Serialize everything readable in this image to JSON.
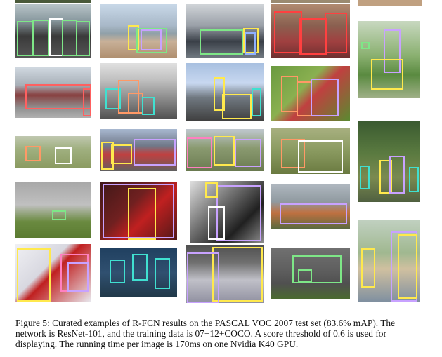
{
  "caption": {
    "lines": [
      "Figure 5: Curated examples of R-FCN results on the PASCAL VOC 2007 test set (83.6% mAP). The",
      "network is ResNet-101, and the training data is 07+12+COCO. A score threshold of 0.6 is used for",
      "displaying. The running time per image is 170ms on one Nvidia K40 GPU."
    ]
  },
  "photos": [
    {
      "id": "motorbikes-parade",
      "boxes": [
        "#7ee787",
        "#7ee787",
        "#ffffff",
        "#7ee787",
        "#7ee787"
      ]
    },
    {
      "id": "beach-motorbike",
      "boxes": [
        "#ffe94d",
        "#7ee787",
        "#c8a2ff"
      ]
    },
    {
      "id": "parking-car",
      "boxes": [
        "#7ee787",
        "#ffe94d",
        "#8fb0ff"
      ]
    },
    {
      "id": "red-chairs",
      "boxes": [
        "#ff4040",
        "#ff4040",
        "#ff4040"
      ]
    },
    {
      "id": "woman-dog",
      "boxes": [
        "#c8a2ff",
        "#7ee787",
        "#ffe94d"
      ]
    },
    {
      "id": "red-bus",
      "boxes": [
        "#ff6060",
        "#ff6060"
      ]
    },
    {
      "id": "potted-plants",
      "boxes": [
        "#40e0d0",
        "#ff9966",
        "#ff9966",
        "#40e0d0"
      ]
    },
    {
      "id": "people-harbor",
      "boxes": [
        "#ffe94d",
        "#ffe94d",
        "#40e0d0"
      ]
    },
    {
      "id": "kayak",
      "boxes": [
        "#ff9966",
        "#ff9966",
        "#c8a2ff"
      ]
    },
    {
      "id": "sheep-field",
      "boxes": [
        "#ff9966",
        "#ffffff"
      ]
    },
    {
      "id": "trains",
      "boxes": [
        "#ffe94d",
        "#ffe94d",
        "#c8a2ff"
      ]
    },
    {
      "id": "horse-riders",
      "boxes": [
        "#ff80c0",
        "#ffe94d",
        "#c8a2ff"
      ]
    },
    {
      "id": "dogs-grass",
      "boxes": [
        "#ff9966",
        "#ffffff"
      ]
    },
    {
      "id": "people-forest",
      "boxes": [
        "#40e0d0",
        "#ffe94d",
        "#c8a2ff"
      ]
    },
    {
      "id": "boat-field",
      "boxes": [
        "#7ee787"
      ]
    },
    {
      "id": "girl-chair",
      "boxes": [
        "#ffe94d",
        "#c8a2ff"
      ]
    },
    {
      "id": "bicycle-bw",
      "boxes": [
        "#c8a2ff",
        "#ffe94d",
        "#ffffff"
      ]
    },
    {
      "id": "train-sunset",
      "boxes": [
        "#c8a2ff"
      ]
    },
    {
      "id": "boy-snow-dog",
      "boxes": [
        "#ffe94d",
        "#ff80c0",
        "#c8a2ff"
      ]
    },
    {
      "id": "bottles",
      "boxes": [
        "#40e0d0",
        "#40e0d0"
      ]
    },
    {
      "id": "boy-sweater",
      "boxes": [
        "#ffe94d",
        "#c8a2ff"
      ]
    },
    {
      "id": "cars-road",
      "boxes": [
        "#7ee787",
        "#7ee787"
      ]
    },
    {
      "id": "people-pole",
      "boxes": [
        "#ffe94d",
        "#c8a2ff"
      ]
    }
  ]
}
